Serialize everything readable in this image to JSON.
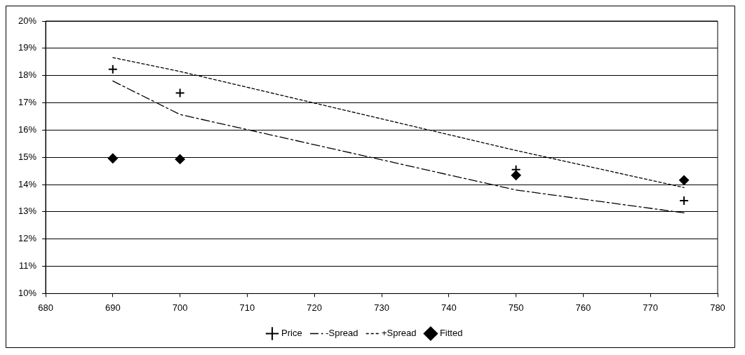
{
  "chart_data": {
    "type": "scatter",
    "x": [
      690,
      700,
      750,
      775
    ],
    "series": [
      {
        "name": "Price",
        "marker": "cross",
        "color": "#000000",
        "values": [
          18.23,
          17.36,
          14.55,
          13.41
        ]
      },
      {
        "name": "-Spread",
        "type": "line",
        "marker": "none",
        "line_style": "dashdot",
        "color": "#000000",
        "values": [
          17.8,
          16.57,
          13.8,
          12.96
        ]
      },
      {
        "name": "+Spread",
        "type": "line",
        "marker": "none",
        "line_style": "dashed",
        "color": "#000000",
        "values": [
          18.66,
          18.15,
          15.25,
          13.89
        ]
      },
      {
        "name": "Fitted",
        "marker": "diamond",
        "color": "#000000",
        "values": [
          14.96,
          14.93,
          14.34,
          14.16
        ]
      }
    ],
    "xlim": [
      680,
      780
    ],
    "xticks": [
      680,
      690,
      700,
      710,
      720,
      730,
      740,
      750,
      760,
      770,
      780
    ],
    "ylim": [
      10,
      20
    ],
    "yticks": [
      {
        "value": 10,
        "label": "10%"
      },
      {
        "value": 11,
        "label": "11%"
      },
      {
        "value": 12,
        "label": "12%"
      },
      {
        "value": 13,
        "label": "13%"
      },
      {
        "value": 14,
        "label": "14%"
      },
      {
        "value": 15,
        "label": "15%"
      },
      {
        "value": 16,
        "label": "16%"
      },
      {
        "value": 17,
        "label": "17%"
      },
      {
        "value": 18,
        "label": "18%"
      },
      {
        "value": 19,
        "label": "19%"
      },
      {
        "value": 20,
        "label": "20%"
      }
    ],
    "grid": "y",
    "legend": "bottom"
  }
}
